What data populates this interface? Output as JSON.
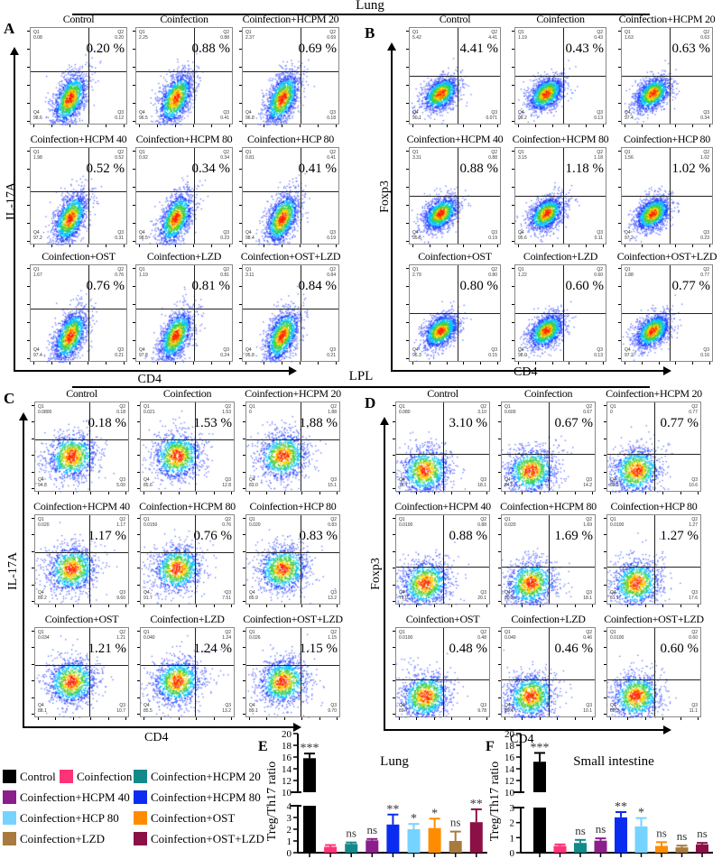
{
  "sections": {
    "top": "Lung",
    "bottom": "LPL"
  },
  "panels": [
    {
      "label": "A",
      "ylabel": "IL-17A",
      "xlabel": "CD4",
      "plots": [
        {
          "title": "Control",
          "pct": "0.20 %",
          "q1": "0.08",
          "q2": "0.20",
          "q3": "0.12",
          "q4": "98.6"
        },
        {
          "title": "Coinfection",
          "pct": "0.88 %",
          "q1": "2.25",
          "q2": "0.88",
          "q3": "0.41",
          "q4": "96.5"
        },
        {
          "title": "Coinfection+HCPM 20",
          "pct": "0.69 %",
          "q1": "2.37",
          "q2": "0.69",
          "q3": "0.18",
          "q4": "96.8"
        },
        {
          "title": "Coinfection+HCPM 40",
          "pct": "0.52 %",
          "q1": "1.98",
          "q2": "0.52",
          "q3": "0.31",
          "q4": "97.2"
        },
        {
          "title": "Coinfection+HCPM 80",
          "pct": "0.34 %",
          "q1": "0.92",
          "q2": "0.34",
          "q3": "0.23",
          "q4": "98.5"
        },
        {
          "title": "Coinfection+HCP 80",
          "pct": "0.41 %",
          "q1": "0.81",
          "q2": "0.41",
          "q3": "0.19",
          "q4": "98.4"
        },
        {
          "title": "Coinfection+OST",
          "pct": "0.76 %",
          "q1": "1.67",
          "q2": "0.76",
          "q3": "0.21",
          "q4": "97.4"
        },
        {
          "title": "Coinfection+LZD",
          "pct": "0.81 %",
          "q1": "1.19",
          "q2": "0.81",
          "q3": "0.24",
          "q4": "97.8"
        },
        {
          "title": "Coinfection+OST+LZD",
          "pct": "0.84 %",
          "q1": "3.11",
          "q2": "0.84",
          "q3": "0.21",
          "q4": "95.8"
        }
      ]
    },
    {
      "label": "B",
      "ylabel": "Foxp3",
      "xlabel": "CD4",
      "plots": [
        {
          "title": "Control",
          "pct": "4.41 %",
          "q1": "5.42",
          "q2": "4.41",
          "q3": "0.071",
          "q4": "90.1"
        },
        {
          "title": "Coinfection",
          "pct": "0.43 %",
          "q1": "1.19",
          "q2": "0.43",
          "q3": "0.13",
          "q4": "98.2"
        },
        {
          "title": "Coinfection+HCPM 20",
          "pct": "0.63 %",
          "q1": "1.63",
          "q2": "0.63",
          "q3": "0.34",
          "q4": "97.4"
        },
        {
          "title": "Coinfection+HCPM 40",
          "pct": "0.88 %",
          "q1": "3.31",
          "q2": "0.88",
          "q3": "0.19",
          "q4": "95.6"
        },
        {
          "title": "Coinfection+HCPM 80",
          "pct": "1.18 %",
          "q1": "3.15",
          "q2": "1.18",
          "q3": "0.11",
          "q4": "95.6"
        },
        {
          "title": "Coinfection+HCP 80",
          "pct": "1.02 %",
          "q1": "1.56",
          "q2": "1.02",
          "q3": "0.23",
          "q4": "97.2"
        },
        {
          "title": "Coinfection+OST",
          "pct": "0.80 %",
          "q1": "2.79",
          "q2": "0.80",
          "q3": "0.15",
          "q4": "96.3"
        },
        {
          "title": "Coinfection+LZD",
          "pct": "0.60 %",
          "q1": "1.22",
          "q2": "0.60",
          "q3": "0.13",
          "q4": "98.0"
        },
        {
          "title": "Coinfection+OST+LZD",
          "pct": "0.77 %",
          "q1": "1.88",
          "q2": "0.77",
          "q3": "0.16",
          "q4": "97.2"
        }
      ]
    },
    {
      "label": "C",
      "ylabel": "IL-17A",
      "xlabel": "CD4",
      "plots": [
        {
          "title": "Control",
          "pct": "0.18 %",
          "q1": "0.0800",
          "q2": "0.18",
          "q3": "5.00",
          "q4": "94.8"
        },
        {
          "title": "Coinfection",
          "pct": "1.53 %",
          "q1": "0.021",
          "q2": "1.53",
          "q3": "12.8",
          "q4": "85.6"
        },
        {
          "title": "Coinfection+HCPM 20",
          "pct": "1.88 %",
          "q1": "0",
          "q2": "1.88",
          "q3": "15.1",
          "q4": "83.0"
        },
        {
          "title": "Coinfection+HCPM 40",
          "pct": "1.17 %",
          "q1": "0.020",
          "q2": "1.17",
          "q3": "9.60",
          "q4": "89.2"
        },
        {
          "title": "Coinfection+HCPM 80",
          "pct": "0.76 %",
          "q1": "0.0150",
          "q2": "0.76",
          "q3": "7.51",
          "q4": "91.7"
        },
        {
          "title": "Coinfection+HCP 80",
          "pct": "0.83 %",
          "q1": "0.020",
          "q2": "0.83",
          "q3": "13.2",
          "q4": "85.9"
        },
        {
          "title": "Coinfection+OST",
          "pct": "1.21 %",
          "q1": "0.034",
          "q2": "1.21",
          "q3": "10.7",
          "q4": "88.1"
        },
        {
          "title": "Coinfection+LZD",
          "pct": "1.24 %",
          "q1": "0.040",
          "q2": "1.24",
          "q3": "13.2",
          "q4": "85.5"
        },
        {
          "title": "Coinfection+OST+LZD",
          "pct": "1.15 %",
          "q1": "0.026",
          "q2": "1.15",
          "q3": "9.70",
          "q4": "89.1"
        }
      ]
    },
    {
      "label": "D",
      "ylabel": "Foxp3",
      "xlabel": "CD4",
      "plots": [
        {
          "title": "Control",
          "pct": "3.10 %",
          "q1": "0.080",
          "q2": "3.10",
          "q3": "18.1",
          "q4": "78.7"
        },
        {
          "title": "Coinfection",
          "pct": "0.67 %",
          "q1": "0.600",
          "q2": "0.67",
          "q3": "14.2",
          "q4": "84.6"
        },
        {
          "title": "Coinfection+HCPM 20",
          "pct": "0.77 %",
          "q1": "0",
          "q2": "0.77",
          "q3": "10.6",
          "q4": "88.5"
        },
        {
          "title": "Coinfection+HCPM 40",
          "pct": "0.88 %",
          "q1": "0.0100",
          "q2": "0.88",
          "q3": "20.1",
          "q4": "79.0"
        },
        {
          "title": "Coinfection+HCPM 80",
          "pct": "1.69 %",
          "q1": "0.020",
          "q2": "1.69",
          "q3": "18.1",
          "q4": "80.2"
        },
        {
          "title": "Coinfection+HCP 80",
          "pct": "1.27 %",
          "q1": "0.0100",
          "q2": "1.27",
          "q3": "17.6",
          "q4": "81.1"
        },
        {
          "title": "Coinfection+OST",
          "pct": "0.48 %",
          "q1": "0.0100",
          "q2": "0.48",
          "q3": "9.78",
          "q4": "89.7"
        },
        {
          "title": "Coinfection+LZD",
          "pct": "0.46 %",
          "q1": "0.040",
          "q2": "0.46",
          "q3": "10.1",
          "q4": "89.4"
        },
        {
          "title": "Coinfection+OST+LZD",
          "pct": "0.60 %",
          "q1": "0.0100",
          "q2": "0.60",
          "q3": "11.1",
          "q4": "88.3"
        }
      ]
    }
  ],
  "legend": [
    {
      "label": "Control",
      "color": "#000000"
    },
    {
      "label": "Coinfection",
      "color": "#ff3377"
    },
    {
      "label": "Coinfection+HCPM 20",
      "color": "#138a8a"
    },
    {
      "label": "Coinfection+HCPM 40",
      "color": "#8b1e8b"
    },
    {
      "label": "Coinfection+HCPM 80",
      "color": "#0a2cf0"
    },
    {
      "label": "Coinfection+HCP 80",
      "color": "#76d3ff"
    },
    {
      "label": "Coinfection+OST",
      "color": "#ff8c00"
    },
    {
      "label": "Coinfection+LZD",
      "color": "#a87a3e"
    },
    {
      "label": "Coinfection+OST+LZD",
      "color": "#8b1046"
    }
  ],
  "chart_data": [
    {
      "panel": "E",
      "type": "bar",
      "title": "Lung",
      "ylabel": "Treg/Th17 ratio",
      "categories": [
        "Control",
        "Coinfection",
        "Coinfection+HCPM 20",
        "Coinfection+HCPM 40",
        "Coinfection+HCPM 80",
        "Coinfection+HCP 80",
        "Coinfection+OST",
        "Coinfection+LZD",
        "Coinfection+OST+LZD"
      ],
      "values": [
        15.8,
        0.5,
        0.75,
        1.05,
        2.4,
        2.0,
        2.1,
        1.0,
        2.6
      ],
      "errors": [
        0.8,
        0.15,
        0.12,
        0.12,
        0.85,
        0.45,
        0.8,
        0.8,
        1.1
      ],
      "significance": [
        "***",
        "",
        "ns",
        "ns",
        "**",
        "*",
        "*",
        "ns",
        "**"
      ],
      "y_axis_break": {
        "lower": [
          0,
          4
        ],
        "upper": [
          10,
          20
        ]
      },
      "yticks_lower": [
        "0",
        "1",
        "2",
        "3",
        "4"
      ],
      "yticks_upper": [
        "10",
        "12",
        "14",
        "16",
        "18",
        "20"
      ]
    },
    {
      "panel": "F",
      "type": "bar",
      "title": "Small intestine",
      "ylabel": "Treg/Th17 ratio",
      "categories": [
        "Control",
        "Coinfection",
        "Coinfection+HCPM 20",
        "Coinfection+HCPM 40",
        "Coinfection+HCPM 80",
        "Coinfection+HCP 80",
        "Coinfection+OST",
        "Coinfection+LZD",
        "Coinfection+OST+LZD"
      ],
      "values": [
        15.2,
        0.45,
        0.65,
        0.8,
        2.35,
        1.75,
        0.45,
        0.35,
        0.55
      ],
      "errors": [
        1.5,
        0.1,
        0.2,
        0.15,
        0.35,
        0.55,
        0.25,
        0.12,
        0.1
      ],
      "significance": [
        "***",
        "",
        "ns",
        "ns",
        "**",
        "*",
        "ns",
        "ns",
        "ns"
      ],
      "y_axis_break": {
        "lower": [
          0,
          3
        ],
        "upper": [
          10,
          20
        ]
      },
      "yticks_lower": [
        "0",
        "1",
        "2",
        "3"
      ],
      "yticks_upper": [
        "10",
        "12",
        "14",
        "16",
        "18",
        "20"
      ]
    }
  ]
}
